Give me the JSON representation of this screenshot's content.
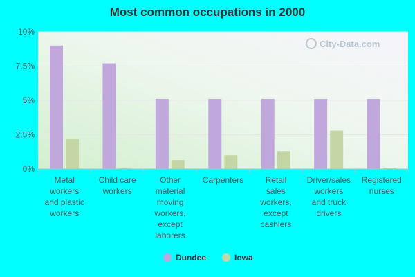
{
  "chart_data": {
    "type": "bar",
    "title": "Most common occupations in 2000",
    "categories": [
      [
        "Metal",
        "workers",
        "and plastic",
        "workers"
      ],
      [
        "Child care",
        "workers"
      ],
      [
        "Other",
        "material",
        "moving",
        "workers,",
        "except",
        "laborers"
      ],
      [
        "Carpenters"
      ],
      [
        "Retail",
        "sales",
        "workers,",
        "except",
        "cashiers"
      ],
      [
        "Driver/sales",
        "workers",
        "and truck",
        "drivers"
      ],
      [
        "Registered",
        "nurses"
      ]
    ],
    "series": [
      {
        "name": "Dundee",
        "color": "#c0a8dc",
        "values": [
          9.0,
          7.7,
          5.1,
          5.1,
          5.1,
          5.1,
          5.1
        ]
      },
      {
        "name": "Iowa",
        "color": "#c5d6a6",
        "values": [
          2.2,
          0.05,
          0.65,
          1.0,
          1.3,
          2.8,
          0.1
        ]
      }
    ],
    "yticks": [
      "0%",
      "2.5%",
      "5%",
      "7.5%",
      "10%"
    ],
    "ylim": [
      0,
      10
    ],
    "grid": true,
    "legend_position": "bottom-center",
    "watermark": "City-Data.com"
  }
}
